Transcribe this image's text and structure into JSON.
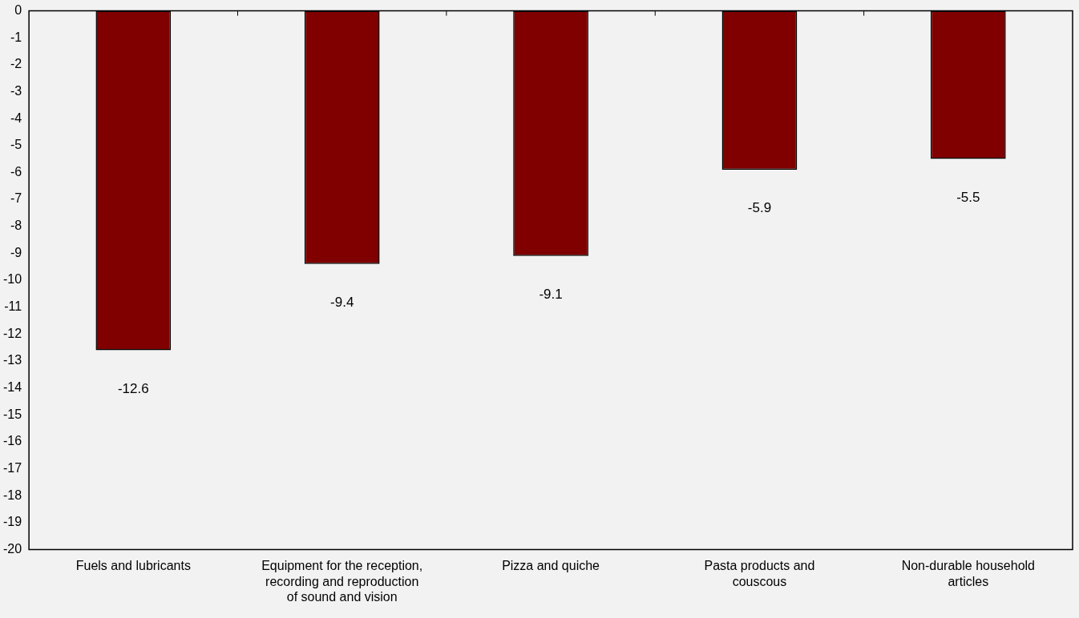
{
  "chart_data": {
    "type": "bar",
    "categories": [
      "Fuels and lubricants",
      "Equipment for the reception, recording and reproduction of sound and vision",
      "Pizza and quiche",
      "Pasta products and couscous",
      "Non-durable household articles"
    ],
    "values": [
      -12.6,
      -9.4,
      -9.1,
      -5.9,
      -5.5
    ],
    "color": "#800000",
    "ylim": [
      -20,
      0
    ],
    "yticks": [
      -20,
      -19,
      -18,
      -17,
      -16,
      -15,
      -14,
      -13,
      -12,
      -11,
      -10,
      -9,
      -8,
      -7,
      -6,
      -5,
      -4,
      -3,
      -2,
      -1,
      0
    ],
    "data_labels": true,
    "grid": false,
    "legend": false
  }
}
